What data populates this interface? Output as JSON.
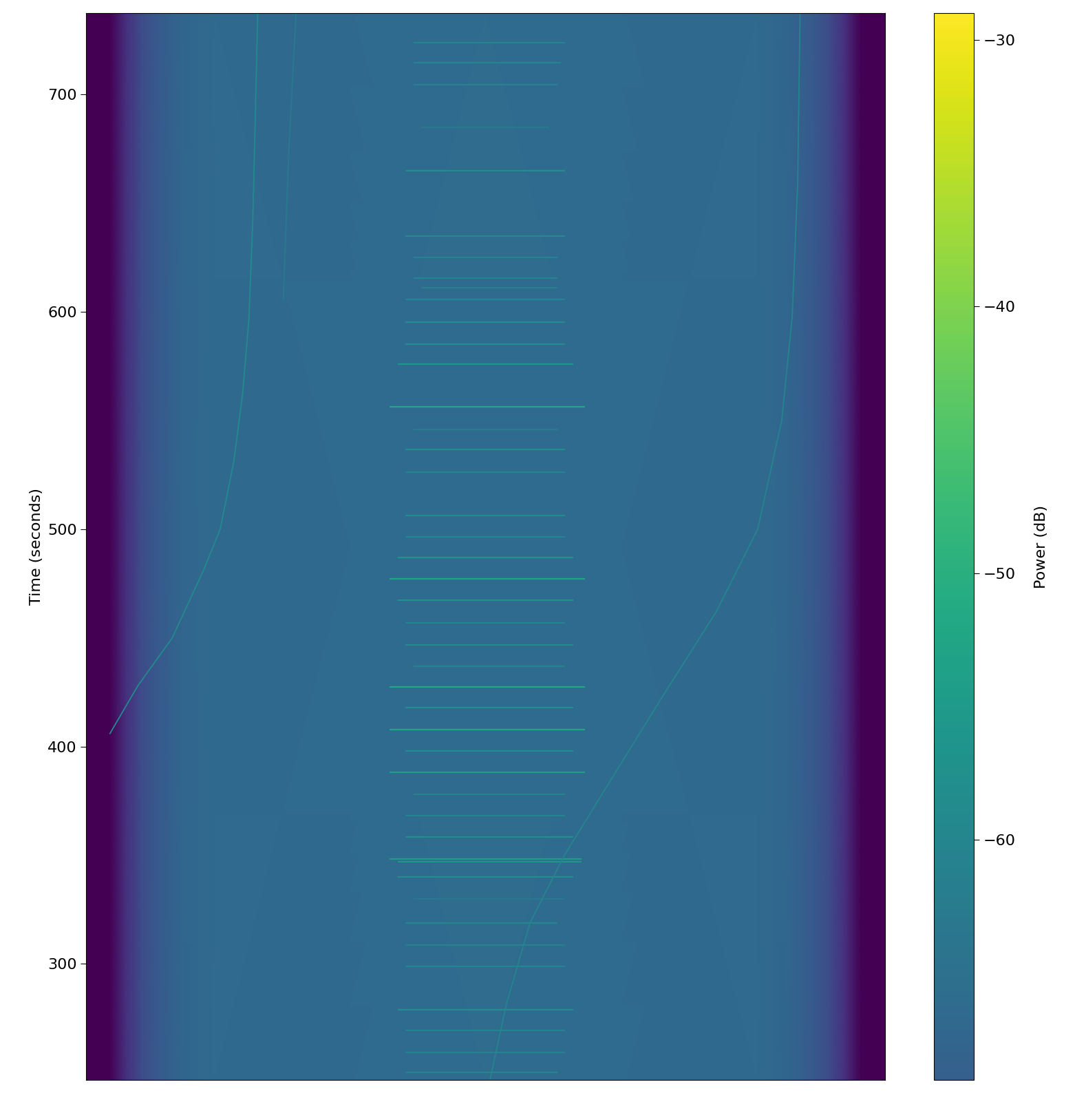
{
  "chart_data": {
    "type": "spectrogram",
    "y_label": "Time (seconds)",
    "colorbar_label": "Power (dB)",
    "xlim": [
      0,
      100
    ],
    "ylim": [
      246.6,
      737.5
    ],
    "yticks": [
      300,
      400,
      500,
      600,
      700
    ],
    "tick_labels": "y",
    "clim": [
      -86,
      -29
    ],
    "colorbar_range": [
      -69,
      -29
    ],
    "colorbar_ticks": [
      {
        "value": -60,
        "label": "−60"
      },
      {
        "value": -50,
        "label": "−50"
      },
      {
        "value": -40,
        "label": "−40"
      },
      {
        "value": -30,
        "label": "−30"
      }
    ],
    "background": {
      "x": [
        0,
        3,
        5,
        7,
        9,
        12,
        16,
        50,
        84,
        88,
        91,
        93,
        95,
        97,
        100
      ],
      "power": [
        -86,
        -86,
        -78,
        -73,
        -70,
        -67.5,
        -66.5,
        -66,
        -66.5,
        -67.5,
        -70,
        -73,
        -78,
        -86,
        -86
      ]
    },
    "bursts": {
      "time": [
        724.0,
        714.7,
        704.7,
        685.0,
        665.0,
        635.0,
        625.0,
        615.6,
        611.0,
        605.6,
        595.3,
        585.3,
        575.9,
        556.3,
        546.0,
        536.6,
        526.3,
        506.3,
        496.6,
        486.9,
        477.2,
        467.2,
        456.9,
        446.9,
        436.9,
        427.5,
        417.8,
        407.8,
        398.1,
        388.1,
        378.1,
        368.1,
        358.4,
        348.4,
        346.9,
        340.0,
        330.0,
        318.8,
        308.8,
        299.0,
        279.0,
        269.4,
        259.4,
        250.0
      ],
      "start": [
        41,
        41,
        41,
        42,
        40,
        40,
        41,
        41,
        42,
        40,
        40,
        40,
        39,
        38,
        41,
        40,
        40,
        40,
        40,
        39,
        38,
        39,
        40,
        40,
        41,
        38,
        40,
        38,
        40,
        38,
        41,
        40,
        40,
        38,
        39,
        39,
        41,
        40,
        40,
        40,
        39,
        40,
        40,
        40
      ],
      "end": [
        60,
        59.5,
        59,
        58,
        60,
        60,
        59,
        59,
        59,
        60,
        60,
        60,
        61,
        62.5,
        59,
        60,
        60,
        60,
        60,
        61,
        62.5,
        61,
        60,
        61,
        60,
        62.5,
        61,
        62.5,
        61,
        62.5,
        60,
        60,
        61,
        62,
        62,
        61,
        60,
        59,
        60,
        60,
        61,
        60,
        60,
        59
      ],
      "power": [
        -60,
        -60,
        -61,
        -63,
        -58,
        -59,
        -61,
        -60,
        -62,
        -60,
        -59,
        -59,
        -56,
        -52,
        -62,
        -58,
        -60,
        -59,
        -60,
        -57,
        -53,
        -57,
        -60,
        -59,
        -60,
        -52,
        -58,
        -53,
        -58,
        -54,
        -61,
        -60,
        -58,
        -55,
        -56,
        -58,
        -63,
        -60,
        -61,
        -60,
        -58,
        -60,
        -61,
        -60
      ]
    },
    "traces": [
      {
        "x": [
          3.0,
          6.5,
          10.8,
          14.7,
          16.8,
          18.5,
          19.6,
          20.4,
          20.9,
          21.3,
          21.5
        ],
        "time": [
          406,
          428,
          450,
          481,
          500,
          531,
          562,
          597,
          644,
          706,
          737.5
        ],
        "power": -59
      },
      {
        "x": [
          24.7,
          25.4,
          26.3
        ],
        "time": [
          606,
          675,
          737.5
        ],
        "power": -63
      },
      {
        "x": [
          50.6,
          52.6,
          55.6,
          59.9,
          65.1,
          72.0,
          78.9,
          84.1,
          87.1,
          88.4,
          89.1,
          89.4
        ],
        "time": [
          247,
          281,
          319,
          350,
          381,
          422,
          462,
          500,
          550,
          597,
          659,
          737.5
        ],
        "power": -60
      }
    ]
  }
}
